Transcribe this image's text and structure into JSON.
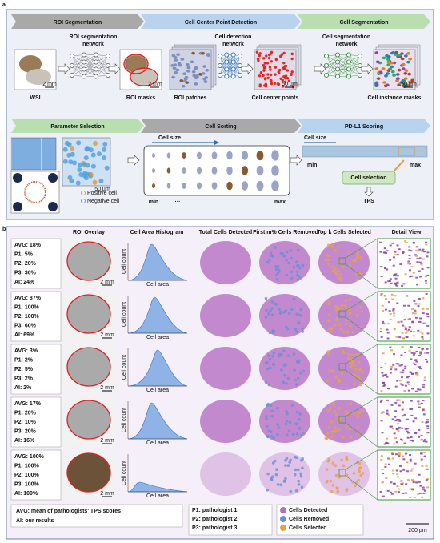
{
  "panel_a": {
    "label": "a",
    "stages_top": [
      "ROI Segmentation",
      "Cell Center Point Detection",
      "Cell Segmentation"
    ],
    "networks": [
      [
        "ROI segmentation",
        "network"
      ],
      [
        "Cell detection",
        "network"
      ],
      [
        "Cell segmentation",
        "network"
      ]
    ],
    "images": [
      {
        "caption": "WSI",
        "scale": "2 mm"
      },
      {
        "caption": "ROI masks",
        "scale": "2 mm"
      },
      {
        "caption": "ROI patches"
      },
      {
        "caption": "Cell center points",
        "scale": "50 µm"
      },
      {
        "caption": "Cell instance masks",
        "scale": "50 µm"
      }
    ],
    "stages_bottom": [
      "Parameter Selection",
      "Cell Sorting",
      "PD-L1 Scoring"
    ],
    "parameter_selection": {
      "legend": [
        "Positive cell",
        "Negative cell"
      ],
      "scale": "50 µm"
    },
    "cell_sorting": {
      "axis_label": "Cell size",
      "min": "min",
      "ellipsis": "···",
      "max": "max"
    },
    "pdl1_scoring": {
      "axis_label": "Cell size",
      "min": "min",
      "max": "max",
      "step": "Cell selection",
      "result": "TPS"
    }
  },
  "panel_b": {
    "label": "b",
    "columns": [
      "ROI Overlay",
      "Cell Area Histogram",
      "Total Cells Detected",
      "First m% Cells Removed",
      "Top k Cells Selected",
      "Detail View"
    ],
    "rows": [
      {
        "stats": [
          "AVG: 18%",
          "P1: 5%",
          "P2: 20%",
          "P3: 30%",
          "AI: 24%"
        ]
      },
      {
        "stats": [
          "AVG: 87%",
          "P1: 100%",
          "P2: 100%",
          "P3: 60%",
          "AI: 69%"
        ]
      },
      {
        "stats": [
          "AVG: 3%",
          "P1: 2%",
          "P2: 5%",
          "P3: 2%",
          "AI: 2%"
        ]
      },
      {
        "stats": [
          "AVG: 17%",
          "P1: 20%",
          "P2: 10%",
          "P3: 20%",
          "AI: 16%"
        ]
      },
      {
        "stats": [
          "AVG: 100%",
          "P1: 100%",
          "P2: 100%",
          "P3: 100%",
          "AI: 100%"
        ]
      }
    ],
    "scale": "2 mm",
    "hist_x_label": "Cell area",
    "hist_y_label": "Cell count",
    "legend": {
      "notes": [
        "AVG: mean of pathologists' TPS scores",
        "AI: our results"
      ],
      "pathologists": [
        "P1: pathologist 1",
        "P2: pathologist 2",
        "P3: pathologist 3"
      ],
      "cells": [
        "Cells Detected",
        "Cells Removed",
        "Cells Selected"
      ]
    },
    "detail_scale": "200 µm"
  }
}
